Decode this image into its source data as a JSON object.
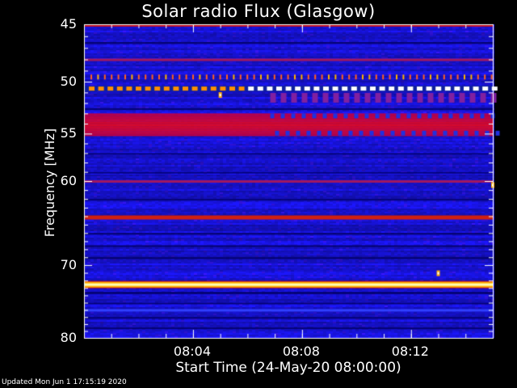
{
  "chart_data": {
    "type": "heatmap",
    "title": "Solar radio Flux (Glasgow)",
    "xlabel": "Start Time (24-May-20 08:00:00)",
    "ylabel": "Frequency [MHz]",
    "x_unit": "time (HH:MM)",
    "x_range": [
      "08:00:00",
      "08:15:00"
    ],
    "y_range": [
      45,
      80
    ],
    "y_scale": "log",
    "y_ticks": [
      45,
      50,
      55,
      60,
      70,
      80
    ],
    "x_ticks": [
      "08:04",
      "08:08",
      "08:12"
    ],
    "colormap": "blue-red-yellow-white (flux intensity)",
    "bands": [
      {
        "freq": 45.0,
        "level": "high",
        "note": "top edge"
      },
      {
        "freq": 48.0,
        "level": "medium"
      },
      {
        "freq": 49.5,
        "level": "high",
        "pattern": "intermittent dots"
      },
      {
        "freq": 50.6,
        "level": "very high",
        "pattern": "intermittent dashes"
      },
      {
        "freq": 51.5,
        "level": "medium",
        "pattern": "checker after ~08:07"
      },
      {
        "freq": 53.5,
        "level": "high",
        "pattern": "broad band 53-55 MHz"
      },
      {
        "freq": 60.0,
        "level": "medium"
      },
      {
        "freq": 64.0,
        "level": "high"
      },
      {
        "freq": 72.5,
        "level": "very high",
        "note": "strongest continuous band"
      },
      {
        "freq": 76.0,
        "level": "low"
      }
    ],
    "spots": [
      {
        "time": "08:13",
        "freq": 71.0,
        "level": "very high"
      },
      {
        "time": "08:05",
        "freq": 51.2,
        "level": "high"
      },
      {
        "time": "08:15",
        "freq": 60.4,
        "level": "high"
      }
    ]
  },
  "footer": {
    "updated": "Updated Mon Jun  1 17:15:19 2020"
  },
  "colors": {
    "background": "#000000",
    "base": "#1a22dd",
    "band_red": "#c00020",
    "band_yellow": "#ffd000",
    "band_white": "#ffffff"
  }
}
